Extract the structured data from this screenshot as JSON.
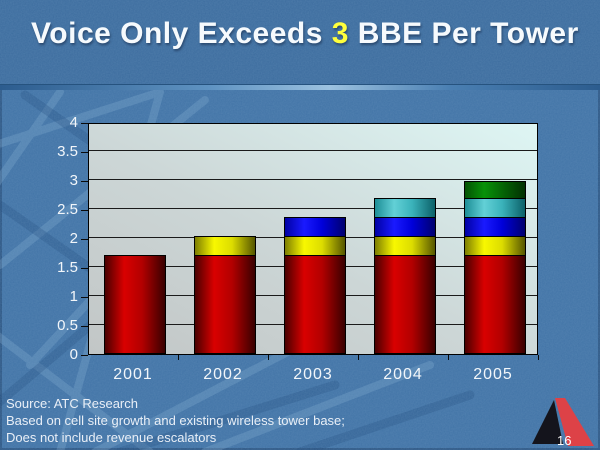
{
  "slide": {
    "title": {
      "prefix": "Voice Only Exceeds ",
      "highlight": "3",
      "suffix": " BBE Per Tower",
      "highlight_color": "#ffff3c",
      "text_color": "#f6fafd"
    },
    "footer": {
      "source_lines": [
        "Source: ATC Research",
        "Based on cell site growth and existing wireless tower base;",
        "Does not include revenue escalators"
      ],
      "page_number": "16"
    },
    "colors": {
      "body_background": "#4173a6",
      "title_bar_background": "#3c6c9e",
      "plot_background_from": "#c2c6c6",
      "plot_background_to": "#def6f4",
      "logo_black": "#14141c",
      "logo_red": "#dd4247"
    }
  },
  "chart_data": {
    "type": "bar",
    "stacked": true,
    "title": "",
    "xlabel": "",
    "ylabel": "",
    "categories": [
      "2001",
      "2002",
      "2003",
      "2004",
      "2005"
    ],
    "series": [
      {
        "name": "red-segment",
        "color": "#cc0000",
        "values": [
          1.7,
          1.7,
          1.7,
          1.7,
          1.7
        ]
      },
      {
        "name": "yellow-segment",
        "color": "#f0f000",
        "values": [
          0,
          0.35,
          0.35,
          0.35,
          0.35
        ]
      },
      {
        "name": "blue-segment",
        "color": "#0000e0",
        "values": [
          0,
          0,
          0.35,
          0.35,
          0.35
        ]
      },
      {
        "name": "teal-segment",
        "color": "#3cb8c0",
        "values": [
          0,
          0,
          0,
          0.35,
          0.35
        ]
      },
      {
        "name": "green-segment",
        "color": "#067a06",
        "values": [
          0,
          0,
          0,
          0,
          0.3
        ]
      }
    ],
    "bar_totals": [
      1.7,
      2.05,
      2.4,
      2.75,
      3.05
    ],
    "ylim": [
      0,
      4
    ],
    "yticks": [
      0,
      0.5,
      1,
      1.5,
      2,
      2.5,
      3,
      3.5,
      4
    ],
    "ytick_labels": [
      "0",
      "0.5",
      "1",
      "1.5",
      "2",
      "2.5",
      "3",
      "3.5",
      "4"
    ],
    "grid": true,
    "legend": false
  }
}
